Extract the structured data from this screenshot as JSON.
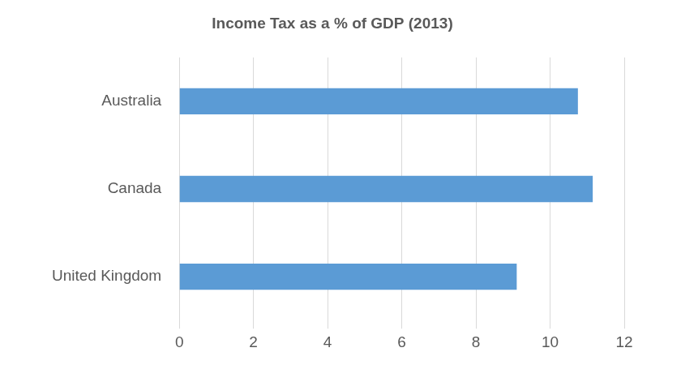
{
  "chart_data": {
    "type": "bar",
    "orientation": "horizontal",
    "title": "Income Tax as a % of GDP (2013)",
    "categories": [
      "Australia",
      "Canada",
      "United Kingdom"
    ],
    "values": [
      10.75,
      11.15,
      9.1
    ],
    "color": "#5b9bd5",
    "xlim": [
      0,
      12
    ],
    "xticks": [
      0,
      2,
      4,
      6,
      8,
      10,
      12
    ],
    "grid": true
  }
}
